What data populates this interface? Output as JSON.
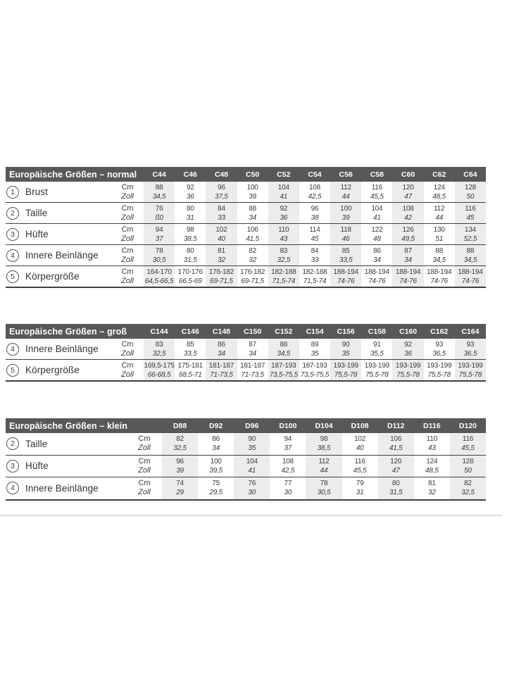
{
  "colors": {
    "header_bar": "#58585a",
    "column_stripe": "#ececec",
    "row_line": "#3f3f3f",
    "text": "#3a3a3a",
    "faint_divider": "#dcdcdc"
  },
  "unit_labels": {
    "cm": "Cm",
    "zoll": "Zoll"
  },
  "tables": [
    {
      "id": "normal",
      "title": "Europäische Größen – normal",
      "columns": [
        "C44",
        "C46",
        "C48",
        "C50",
        "C52",
        "C54",
        "C56",
        "C58",
        "C60",
        "C62",
        "C64"
      ],
      "rows": [
        {
          "num": "1",
          "label": "Brust",
          "cm": [
            "88",
            "92",
            "96",
            "100",
            "104",
            "108",
            "112",
            "116",
            "120",
            "124",
            "128"
          ],
          "zoll": [
            "34,5",
            "36",
            "37,5",
            "39",
            "41",
            "42,5",
            "44",
            "45,5",
            "47",
            "48,5",
            "50"
          ]
        },
        {
          "num": "2",
          "label": "Taille",
          "cm": [
            "76",
            "80",
            "84",
            "88",
            "92",
            "96",
            "100",
            "104",
            "108",
            "112",
            "116"
          ],
          "zoll": [
            "ß0",
            "31",
            "33",
            "34",
            "36",
            "38",
            "39",
            "41",
            "42",
            "44",
            "45"
          ]
        },
        {
          "num": "3",
          "label": "Hüfte",
          "cm": [
            "94",
            "98",
            "102",
            "106",
            "110",
            "114",
            "118",
            "122",
            "126",
            "130",
            "134"
          ],
          "zoll": [
            "37",
            "38,5",
            "40",
            "41,5",
            "43",
            "45",
            "46",
            "48",
            "49,5",
            "51",
            "52,5"
          ]
        },
        {
          "num": "4",
          "label": "Innere Beinlänge",
          "cm": [
            "78",
            "80",
            "81",
            "82",
            "83",
            "84",
            "85",
            "86",
            "87",
            "88",
            "88"
          ],
          "zoll": [
            "30,5",
            "31,5",
            "32",
            "32",
            "32,5",
            "33",
            "33,5",
            "34",
            "34",
            "34,5",
            "34,5"
          ]
        },
        {
          "num": "5",
          "label": "Körpergröße",
          "cm": [
            "164-170",
            "170-176",
            "176-182",
            "176-182",
            "182-188",
            "182-188",
            "188-194",
            "188-194",
            "188-194",
            "188-194",
            "188-194"
          ],
          "zoll": [
            "64,5-66,5",
            "66,5-69",
            "69-71,5",
            "69-71,5",
            "71,5-74",
            "71,5-74",
            "74-76",
            "74-76",
            "74-76",
            "74-76",
            "74-76"
          ]
        }
      ]
    },
    {
      "id": "gross",
      "title": "Europäische Größen – groß",
      "columns": [
        "C144",
        "C146",
        "C148",
        "C150",
        "C152",
        "C154",
        "C156",
        "C158",
        "C160",
        "C162",
        "C164"
      ],
      "rows": [
        {
          "num": "4",
          "label": "Innere Beinlänge",
          "cm": [
            "83",
            "85",
            "86",
            "87",
            "88",
            "89",
            "90",
            "91",
            "92",
            "93",
            "93"
          ],
          "zoll": [
            "32,5",
            "33,5",
            "34",
            "34",
            "34,5",
            "35",
            "35",
            "35,5",
            "36",
            "36,5",
            "36,5"
          ]
        },
        {
          "num": "5",
          "label": "Körpergröße",
          "cm": [
            "169,5-175",
            "175-181",
            "181-187",
            "181-187",
            "187-193",
            "187-193",
            "193-199",
            "193-199",
            "193-199",
            "193-199",
            "193-199"
          ],
          "zoll": [
            "66-68,5",
            "68,5-71",
            "71-73,5",
            "71-73,5",
            "73,5-75,5",
            "73,5-75,5",
            "75,5-78",
            "75,5-78",
            "75,5-78",
            "75,5-78",
            "75,5-78"
          ]
        }
      ]
    },
    {
      "id": "klein",
      "title": "Europäische Größen – klein",
      "columns": [
        "D88",
        "D92",
        "D96",
        "D100",
        "D104",
        "D108",
        "D112",
        "D116",
        "D120"
      ],
      "rows": [
        {
          "num": "2",
          "label": "Taille",
          "cm": [
            "82",
            "86",
            "90",
            "94",
            "98",
            "102",
            "106",
            "110",
            "116"
          ],
          "zoll": [
            "32,5",
            "34",
            "35",
            "37",
            "38,5",
            "40",
            "41,5",
            "43",
            "45,5"
          ]
        },
        {
          "num": "3",
          "label": "Hüfte",
          "cm": [
            "96",
            "100",
            "104",
            "108",
            "112",
            "116",
            "120",
            "124",
            "128"
          ],
          "zoll": [
            "39",
            "39,5",
            "41",
            "42,5",
            "44",
            "45,5",
            "47",
            "48,5",
            "50"
          ]
        },
        {
          "num": "4",
          "label": "Innere Beinlänge",
          "cm": [
            "74",
            "75",
            "76",
            "77",
            "78",
            "79",
            "80",
            "81",
            "82"
          ],
          "zoll": [
            "29",
            "29,5",
            "30",
            "30",
            "30,5",
            "31",
            "31,5",
            "32",
            "32,5"
          ]
        }
      ]
    }
  ]
}
